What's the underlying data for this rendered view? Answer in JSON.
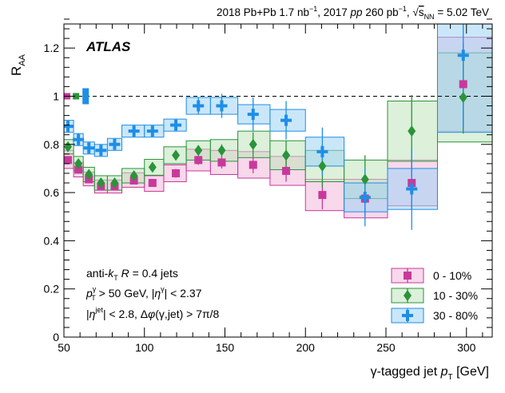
{
  "chart_data": {
    "type": "scatter",
    "header": {
      "part1": "2018 Pb+Pb 1.7 nb",
      "sup1": "−1",
      "part2": ", 2017 ",
      "pp": "pp",
      "part3": " 260 pb",
      "sup2": "−1",
      "part4": ", ",
      "sqrt": "√",
      "s": "s",
      "nn": "NN",
      "part5": " = 5.02 TeV"
    },
    "experiment": "ATLAS",
    "ylabel": {
      "main": "R",
      "sub": "AA"
    },
    "xlabel": {
      "prefix": "γ-tagged jet ",
      "p": "p",
      "sub": "T",
      "unit": " [GeV]"
    },
    "xlim": [
      50,
      316
    ],
    "ylim": [
      0,
      1.3
    ],
    "x_ticks": [
      50,
      100,
      150,
      200,
      250,
      300
    ],
    "y_ticks": [
      0,
      0.2,
      0.4,
      0.6,
      0.8,
      1,
      1.2
    ],
    "reference_line": 1,
    "annotations": {
      "line1": {
        "prefix": "anti-",
        "k": "k",
        "ksub": "T",
        "mid": " ",
        "R": "R",
        "rest": " = 0.4 jets"
      },
      "line2": {
        "p": "p",
        "sub": "T",
        "sup": "γ",
        "text1": " > 50 GeV, |",
        "eta": "η",
        "etasup": "γ",
        "text2": "| < 2.37"
      },
      "line3": {
        "open": "|",
        "eta": "η",
        "etasup": "jet",
        "text1": "| < 2.8, Δ",
        "phi": "φ",
        "text2": "(γ,jet) > 7π/8"
      }
    },
    "legend_position": "bottom-right",
    "series": [
      {
        "name": "0 - 10%",
        "marker": "square",
        "color": "#c8399b",
        "fill": "#f2b8da",
        "points": [
          {
            "x": 52.5,
            "y": 0.735,
            "xlo": 50,
            "xhi": 56,
            "syst_lo": 0.7,
            "syst_hi": 0.775,
            "stat": 0.012
          },
          {
            "x": 59,
            "y": 0.695,
            "xlo": 56,
            "xhi": 62,
            "syst_lo": 0.665,
            "syst_hi": 0.725,
            "stat": 0.012
          },
          {
            "x": 65.5,
            "y": 0.655,
            "xlo": 62,
            "xhi": 69,
            "syst_lo": 0.628,
            "syst_hi": 0.685,
            "stat": 0.012
          },
          {
            "x": 73,
            "y": 0.625,
            "xlo": 69,
            "xhi": 77,
            "syst_lo": 0.598,
            "syst_hi": 0.652,
            "stat": 0.012
          },
          {
            "x": 81.5,
            "y": 0.625,
            "xlo": 77,
            "xhi": 86,
            "syst_lo": 0.598,
            "syst_hi": 0.652,
            "stat": 0.013
          },
          {
            "x": 93.5,
            "y": 0.65,
            "xlo": 86,
            "xhi": 100,
            "syst_lo": 0.622,
            "syst_hi": 0.682,
            "stat": 0.015
          },
          {
            "x": 105,
            "y": 0.64,
            "xlo": 100,
            "xhi": 112,
            "syst_lo": 0.605,
            "syst_hi": 0.67,
            "stat": 0.015
          },
          {
            "x": 119.5,
            "y": 0.68,
            "xlo": 112,
            "xhi": 126,
            "syst_lo": 0.645,
            "syst_hi": 0.715,
            "stat": 0.018
          },
          {
            "x": 133.5,
            "y": 0.735,
            "xlo": 126,
            "xhi": 141,
            "syst_lo": 0.69,
            "syst_hi": 0.78,
            "stat": 0.02
          },
          {
            "x": 148,
            "y": 0.725,
            "xlo": 141,
            "xhi": 158,
            "syst_lo": 0.675,
            "syst_hi": 0.775,
            "stat": 0.025
          },
          {
            "x": 167.5,
            "y": 0.715,
            "xlo": 158,
            "xhi": 178,
            "syst_lo": 0.66,
            "syst_hi": 0.77,
            "stat": 0.035
          },
          {
            "x": 188,
            "y": 0.69,
            "xlo": 178,
            "xhi": 200,
            "syst_lo": 0.63,
            "syst_hi": 0.75,
            "stat": 0.045
          },
          {
            "x": 210.5,
            "y": 0.59,
            "xlo": 200,
            "xhi": 224,
            "syst_lo": 0.525,
            "syst_hi": 0.655,
            "stat": 0.06
          },
          {
            "x": 237,
            "y": 0.575,
            "xlo": 224,
            "xhi": 251,
            "syst_lo": 0.495,
            "syst_hi": 0.655,
            "stat": 0.08
          },
          {
            "x": 266,
            "y": 0.64,
            "xlo": 251,
            "xhi": 282,
            "syst_lo": 0.545,
            "syst_hi": 0.735,
            "stat": 0.11
          },
          {
            "x": 298,
            "y": 1.05,
            "xlo": 282,
            "xhi": 316,
            "syst_lo": 0.855,
            "syst_hi": 1.245,
            "stat": 0.17
          }
        ]
      },
      {
        "name": "10 - 30%",
        "marker": "diamond",
        "color": "#2a9439",
        "fill": "#bfe3bb",
        "points": [
          {
            "x": 52.5,
            "y": 0.79,
            "xlo": 50,
            "xhi": 56,
            "syst_lo": 0.76,
            "syst_hi": 0.82,
            "stat": 0.012
          },
          {
            "x": 59,
            "y": 0.72,
            "xlo": 56,
            "xhi": 62,
            "syst_lo": 0.69,
            "syst_hi": 0.75,
            "stat": 0.012
          },
          {
            "x": 65.5,
            "y": 0.675,
            "xlo": 62,
            "xhi": 69,
            "syst_lo": 0.645,
            "syst_hi": 0.705,
            "stat": 0.012
          },
          {
            "x": 73,
            "y": 0.64,
            "xlo": 69,
            "xhi": 77,
            "syst_lo": 0.61,
            "syst_hi": 0.67,
            "stat": 0.012
          },
          {
            "x": 81.5,
            "y": 0.64,
            "xlo": 77,
            "xhi": 86,
            "syst_lo": 0.61,
            "syst_hi": 0.67,
            "stat": 0.013
          },
          {
            "x": 93.5,
            "y": 0.67,
            "xlo": 86,
            "xhi": 100,
            "syst_lo": 0.64,
            "syst_hi": 0.7,
            "stat": 0.015
          },
          {
            "x": 105,
            "y": 0.705,
            "xlo": 100,
            "xhi": 112,
            "syst_lo": 0.672,
            "syst_hi": 0.738,
            "stat": 0.016
          },
          {
            "x": 119.5,
            "y": 0.755,
            "xlo": 112,
            "xhi": 126,
            "syst_lo": 0.72,
            "syst_hi": 0.79,
            "stat": 0.018
          },
          {
            "x": 133.5,
            "y": 0.775,
            "xlo": 126,
            "xhi": 141,
            "syst_lo": 0.735,
            "syst_hi": 0.815,
            "stat": 0.02
          },
          {
            "x": 148,
            "y": 0.775,
            "xlo": 141,
            "xhi": 158,
            "syst_lo": 0.73,
            "syst_hi": 0.82,
            "stat": 0.025
          },
          {
            "x": 167.5,
            "y": 0.8,
            "xlo": 158,
            "xhi": 178,
            "syst_lo": 0.745,
            "syst_hi": 0.855,
            "stat": 0.05
          },
          {
            "x": 188,
            "y": 0.755,
            "xlo": 178,
            "xhi": 200,
            "syst_lo": 0.695,
            "syst_hi": 0.815,
            "stat": 0.06
          },
          {
            "x": 210.5,
            "y": 0.71,
            "xlo": 200,
            "xhi": 224,
            "syst_lo": 0.645,
            "syst_hi": 0.775,
            "stat": 0.09
          },
          {
            "x": 237,
            "y": 0.655,
            "xlo": 224,
            "xhi": 251,
            "syst_lo": 0.575,
            "syst_hi": 0.735,
            "stat": 0.1
          },
          {
            "x": 266,
            "y": 0.855,
            "xlo": 251,
            "xhi": 282,
            "syst_lo": 0.73,
            "syst_hi": 0.98,
            "stat": 0.15
          },
          {
            "x": 298,
            "y": 0.995,
            "xlo": 282,
            "xhi": 316,
            "syst_lo": 0.81,
            "syst_hi": 1.18,
            "stat": 0.15
          }
        ]
      },
      {
        "name": "30 - 80%",
        "marker": "cross",
        "color": "#1e8ee6",
        "fill": "#9fd4f5",
        "points": [
          {
            "x": 52.5,
            "y": 0.875,
            "xlo": 50,
            "xhi": 56,
            "syst_lo": 0.85,
            "syst_hi": 0.9,
            "stat": 0.012
          },
          {
            "x": 59,
            "y": 0.82,
            "xlo": 56,
            "xhi": 62,
            "syst_lo": 0.795,
            "syst_hi": 0.845,
            "stat": 0.012
          },
          {
            "x": 65.5,
            "y": 0.785,
            "xlo": 62,
            "xhi": 69,
            "syst_lo": 0.76,
            "syst_hi": 0.81,
            "stat": 0.012
          },
          {
            "x": 73,
            "y": 0.775,
            "xlo": 69,
            "xhi": 77,
            "syst_lo": 0.75,
            "syst_hi": 0.8,
            "stat": 0.013
          },
          {
            "x": 81.5,
            "y": 0.8,
            "xlo": 77,
            "xhi": 86,
            "syst_lo": 0.775,
            "syst_hi": 0.825,
            "stat": 0.013
          },
          {
            "x": 93.5,
            "y": 0.855,
            "xlo": 86,
            "xhi": 100,
            "syst_lo": 0.83,
            "syst_hi": 0.88,
            "stat": 0.016
          },
          {
            "x": 105,
            "y": 0.855,
            "xlo": 100,
            "xhi": 112,
            "syst_lo": 0.83,
            "syst_hi": 0.88,
            "stat": 0.018
          },
          {
            "x": 119.5,
            "y": 0.88,
            "xlo": 112,
            "xhi": 126,
            "syst_lo": 0.855,
            "syst_hi": 0.905,
            "stat": 0.02
          },
          {
            "x": 133.5,
            "y": 0.96,
            "xlo": 126,
            "xhi": 141,
            "syst_lo": 0.925,
            "syst_hi": 0.995,
            "stat": 0.035
          },
          {
            "x": 148,
            "y": 0.96,
            "xlo": 141,
            "xhi": 158,
            "syst_lo": 0.925,
            "syst_hi": 0.995,
            "stat": 0.05
          },
          {
            "x": 167.5,
            "y": 0.925,
            "xlo": 158,
            "xhi": 178,
            "syst_lo": 0.885,
            "syst_hi": 0.965,
            "stat": 0.07
          },
          {
            "x": 188,
            "y": 0.9,
            "xlo": 178,
            "xhi": 200,
            "syst_lo": 0.855,
            "syst_hi": 0.945,
            "stat": 0.08
          },
          {
            "x": 210.5,
            "y": 0.77,
            "xlo": 200,
            "xhi": 224,
            "syst_lo": 0.71,
            "syst_hi": 0.83,
            "stat": 0.1
          },
          {
            "x": 237,
            "y": 0.58,
            "xlo": 224,
            "xhi": 251,
            "syst_lo": 0.52,
            "syst_hi": 0.64,
            "stat": 0.12
          },
          {
            "x": 266,
            "y": 0.615,
            "xlo": 251,
            "xhi": 282,
            "syst_lo": 0.53,
            "syst_hi": 0.7,
            "stat": 0.17
          },
          {
            "x": 298,
            "y": 1.17,
            "xlo": 282,
            "xhi": 316,
            "syst_lo": 0.85,
            "syst_hi": 1.49,
            "stat": 0.3
          }
        ]
      }
    ],
    "reference_boxes": [
      {
        "series": "0 - 10%",
        "x": 52,
        "y": 1.0
      },
      {
        "series": "10 - 30%",
        "x": 57.5,
        "y": 1.0
      },
      {
        "series": "30 - 80%",
        "x": 63.5,
        "y": 1.0
      }
    ]
  }
}
